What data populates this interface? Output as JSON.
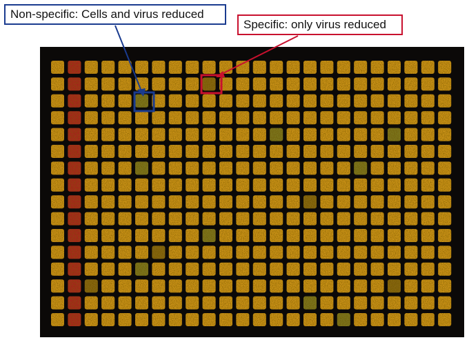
{
  "annotations": {
    "nonspecific": {
      "label": "Non-specific: Cells and virus reduced",
      "color": "#1a3b8f",
      "well": {
        "row": 2,
        "col": 5
      }
    },
    "specific": {
      "label": "Specific: only virus reduced",
      "color": "#c8102e",
      "well": {
        "row": 1,
        "col": 9
      }
    }
  },
  "plate": {
    "rows": 16,
    "cols": 24,
    "background": "#0b0908",
    "well_colors": {
      "normal": "#d49a1c",
      "red": "#b01424",
      "greenish": "#7e7a20",
      "dim": "#8a6a18"
    },
    "red_column": 1,
    "greenish_wells": [
      [
        2,
        5
      ],
      [
        4,
        13
      ],
      [
        4,
        20
      ],
      [
        6,
        5
      ],
      [
        6,
        18
      ],
      [
        10,
        9
      ],
      [
        14,
        15
      ],
      [
        15,
        17
      ],
      [
        12,
        5
      ]
    ],
    "dim_wells": [
      [
        1,
        9
      ],
      [
        8,
        15
      ],
      [
        13,
        20
      ],
      [
        11,
        6
      ],
      [
        13,
        2
      ]
    ]
  }
}
